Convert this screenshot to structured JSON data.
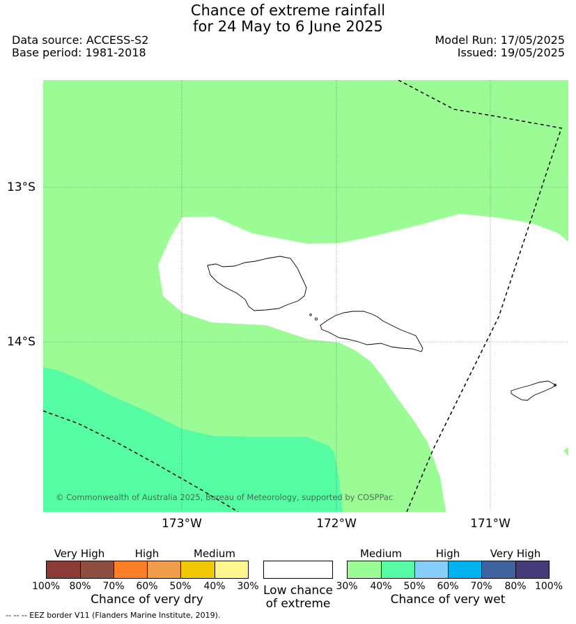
{
  "title": {
    "line1": "Chance of extreme rainfall",
    "line2": "for 24 May to 6 June 2025"
  },
  "meta": {
    "data_source": "Data source: ACCESS-S2",
    "base_period": "Base period: 1981-2018",
    "model_run": "Model Run: 17/05/2025",
    "issued": "Issued: 19/05/2025"
  },
  "map": {
    "lat_labels": [
      "13°S",
      "14°S"
    ],
    "lon_labels": [
      "173°W",
      "172°W",
      "171°W"
    ],
    "copyright": "© Commonwealth of Australia 2025, Bureau of Meteorology, supported by COSPPac",
    "colors": {
      "wet_medium": "#9bfc96",
      "wet_medium_high": "#55fca3",
      "low_chance": "#ffffff",
      "eez_border": "#000000"
    }
  },
  "legend": {
    "dry": {
      "labels": [
        "Very High",
        "High",
        "Medium"
      ],
      "ticks": [
        "100%",
        "80%",
        "70%",
        "60%",
        "50%",
        "40%",
        "30%"
      ],
      "title": "Chance of very dry",
      "colors": [
        "#8b3a35",
        "#8e4e3f",
        "#fd8029",
        "#ef9c4b",
        "#f1c806",
        "#fef68c"
      ]
    },
    "neutral": {
      "title_line1": "Low chance",
      "title_line2": "of extreme",
      "color": "#ffffff"
    },
    "wet": {
      "labels": [
        "Medium",
        "High",
        "Very High"
      ],
      "ticks": [
        "30%",
        "40%",
        "50%",
        "60%",
        "70%",
        "80%",
        "100%"
      ],
      "title": "Chance of very wet",
      "colors": [
        "#9bfc96",
        "#55fca3",
        "#87cefa",
        "#00b3ef",
        "#3f63a0",
        "#443c7a"
      ]
    }
  },
  "footer": "--  --  -- EEZ border V11 (Flanders Marine Institute, 2019)."
}
